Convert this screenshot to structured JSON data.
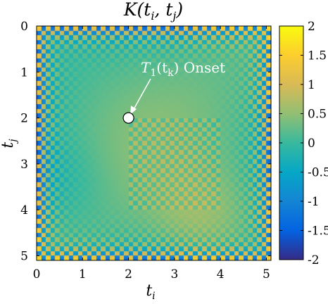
{
  "chart_data": {
    "type": "heatmap",
    "title": "K(t_i, t_j)",
    "title_parts": {
      "main": "K(t",
      "sub_i": "i",
      "mid": ", t",
      "sub_j": "j",
      "end": ")"
    },
    "xlabel": "t_i",
    "ylabel": "t_j",
    "xlabel_parts": {
      "main": "t",
      "sub": "i"
    },
    "ylabel_parts": {
      "main": "t",
      "sub": "j"
    },
    "xlim": [
      0,
      5.1
    ],
    "ylim": [
      0,
      5.1
    ],
    "y_axis_direction": "down",
    "x_ticks": [
      "0",
      "1",
      "2",
      "3",
      "4",
      "5"
    ],
    "y_ticks": [
      "0",
      "1",
      "2",
      "3",
      "4",
      "5"
    ],
    "colorbar": {
      "range": [
        -2,
        2
      ],
      "colormap": "parula",
      "ticks": [
        "2",
        "1.5",
        "1",
        "0.5",
        "0",
        "-0.5",
        "-1",
        "-1.5",
        "-2"
      ]
    },
    "grid": false,
    "regions": [
      {
        "name": "checkerboard-block",
        "x_range": [
          2,
          4
        ],
        "y_range": [
          2,
          4
        ]
      }
    ],
    "annotation": {
      "text_parts": {
        "T": "T",
        "sub1": "1",
        "open": "(t",
        "subk": "k",
        "close": ")",
        "word": " Onset"
      },
      "point": [
        2,
        2
      ],
      "marker": "white-circle"
    }
  }
}
